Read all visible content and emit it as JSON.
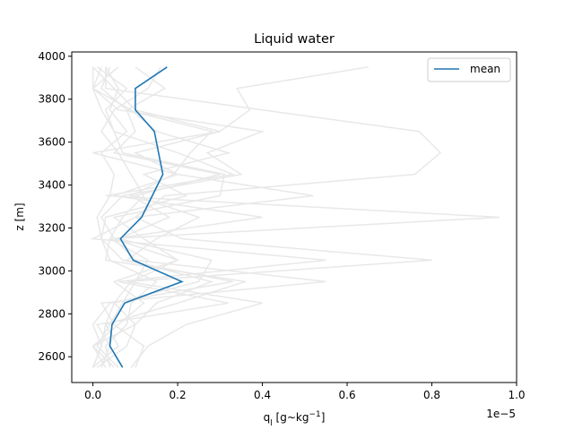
{
  "chart_data": {
    "type": "line",
    "title": "Liquid water",
    "xlabel": "q",
    "xlabel_sub": "l",
    "xlabel_unit_open": " [g~kg",
    "xlabel_unit_sup": "−1",
    "xlabel_unit_close": "]",
    "ylabel": "z [m]",
    "x_offset_label": "1e−5",
    "xlim": [
      -0.05,
      1.0
    ],
    "ylim": [
      2480,
      4020
    ],
    "xticks": [
      0.0,
      0.2,
      0.4,
      0.6,
      0.8,
      1.0
    ],
    "xtick_labels": [
      "0.0",
      "0.2",
      "0.4",
      "0.6",
      "0.8",
      "1.0"
    ],
    "yticks": [
      2600,
      2800,
      3000,
      3200,
      3400,
      3600,
      3800,
      4000
    ],
    "ytick_labels": [
      "2600",
      "2800",
      "3000",
      "3200",
      "3400",
      "3600",
      "3800",
      "4000"
    ],
    "grid": false,
    "legend_position": "top-right",
    "colors": {
      "mean": "#1f77b4",
      "members": "#e8e8e8",
      "axes": "#000000"
    },
    "z": [
      2550,
      2650,
      2750,
      2850,
      2950,
      3050,
      3150,
      3250,
      3350,
      3450,
      3550,
      3650,
      3750,
      3850,
      3950
    ],
    "series": [
      {
        "name": "mean",
        "values": [
          0.07,
          0.04,
          0.045,
          0.075,
          0.21,
          0.095,
          0.065,
          0.115,
          0.14,
          0.165,
          0.155,
          0.145,
          0.1,
          0.1,
          0.175
        ]
      }
    ],
    "members": [
      [
        0.0,
        0.02,
        0.03,
        0.05,
        0.09,
        0.2,
        0.05,
        0.02,
        0.07,
        0.35,
        0.27,
        0.4,
        0.06,
        0.0,
        0.0
      ],
      [
        0.05,
        0.0,
        0.1,
        0.15,
        0.28,
        0.08,
        0.15,
        0.25,
        0.1,
        0.3,
        0.05,
        0.1,
        0.08,
        0.17,
        0.1
      ],
      [
        0.1,
        0.12,
        0.05,
        0.02,
        0.55,
        0.1,
        0.05,
        0.4,
        0.05,
        0.2,
        0.1,
        0.3,
        0.37,
        0.34,
        0.65
      ],
      [
        0.0,
        0.06,
        0.03,
        0.2,
        0.36,
        0.03,
        0.04,
        0.96,
        0.03,
        0.33,
        0.2,
        0.05,
        0.02,
        0.0,
        0.06
      ],
      [
        0.09,
        0.13,
        0.22,
        0.4,
        0.08,
        0.8,
        0.21,
        0.1,
        0.17,
        0.76,
        0.82,
        0.77,
        0.4,
        0.03,
        0.03
      ],
      [
        0.02,
        0.04,
        0.01,
        0.32,
        0.06,
        0.55,
        0.0,
        0.1,
        0.52,
        0.2,
        0.0,
        0.3,
        0.1,
        0.05,
        0.0
      ],
      [
        0.06,
        0.01,
        0.04,
        0.07,
        0.1,
        0.13,
        0.04,
        0.07,
        0.12,
        0.09,
        0.06,
        0.02,
        0.05,
        0.13,
        0.16
      ],
      [
        0.01,
        0.08,
        0.1,
        0.05,
        0.25,
        0.28,
        0.06,
        0.18,
        0.09,
        0.19,
        0.23,
        0.28,
        0.08,
        0.02,
        0.04
      ],
      [
        0.03,
        0.0,
        0.06,
        0.12,
        0.05,
        0.2,
        0.12,
        0.05,
        0.3,
        0.31,
        0.07,
        0.05,
        0.03,
        0.08,
        0.01
      ],
      [
        0.0,
        0.02,
        0.0,
        0.04,
        0.33,
        0.07,
        0.02,
        0.03,
        0.22,
        0.12,
        0.32,
        0.15,
        0.09,
        0.0,
        0.02
      ],
      [
        0.04,
        0.03,
        0.08,
        0.09,
        0.15,
        0.04,
        0.02,
        0.01,
        0.04,
        0.05,
        0.02,
        0.08,
        0.04,
        0.06,
        0.03
      ]
    ]
  }
}
